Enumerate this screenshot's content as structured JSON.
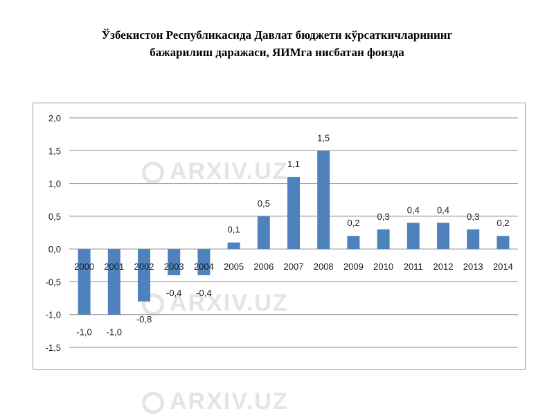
{
  "title": {
    "line1": "Ўзбекистон Республикасида Давлат бюджети кўрсаткичларининг",
    "line2": "бажарилиш даражаси, ЯИМга нисбатан фоизда"
  },
  "watermark": {
    "text": "ARXIV.UZ"
  },
  "colors": {
    "bar": "#4f81bd",
    "grid": "#8c8c8c",
    "frame": "#9a9a9a"
  },
  "chart_data": {
    "type": "bar",
    "categories": [
      "2000",
      "2001",
      "2002",
      "2003",
      "2004",
      "2005",
      "2006",
      "2007",
      "2008",
      "2009",
      "2010",
      "2011",
      "2012",
      "2013",
      "2014"
    ],
    "values": [
      -1.0,
      -1.0,
      -0.8,
      -0.4,
      -0.4,
      0.1,
      0.5,
      1.1,
      1.5,
      0.2,
      0.3,
      0.4,
      0.4,
      0.3,
      0.2
    ],
    "value_labels": [
      "-1,0",
      "-1,0",
      "-0,8",
      "-0,4",
      "-0,4",
      "0,1",
      "0,5",
      "1,1",
      "1,5",
      "0,2",
      "0,3",
      "0,4",
      "0,4",
      "0,3",
      "0,2"
    ],
    "y_ticks": [
      2.0,
      1.5,
      1.0,
      0.5,
      0.0,
      -0.5,
      -1.0,
      -1.5
    ],
    "y_tick_labels": [
      "2,0",
      "1,5",
      "1,0",
      "0,5",
      "0,0",
      "-0,5",
      "-1,0",
      "-1,5"
    ],
    "ylim": [
      -1.5,
      2.0
    ],
    "grid": true,
    "legend": "none",
    "xlabel": "",
    "ylabel": ""
  }
}
